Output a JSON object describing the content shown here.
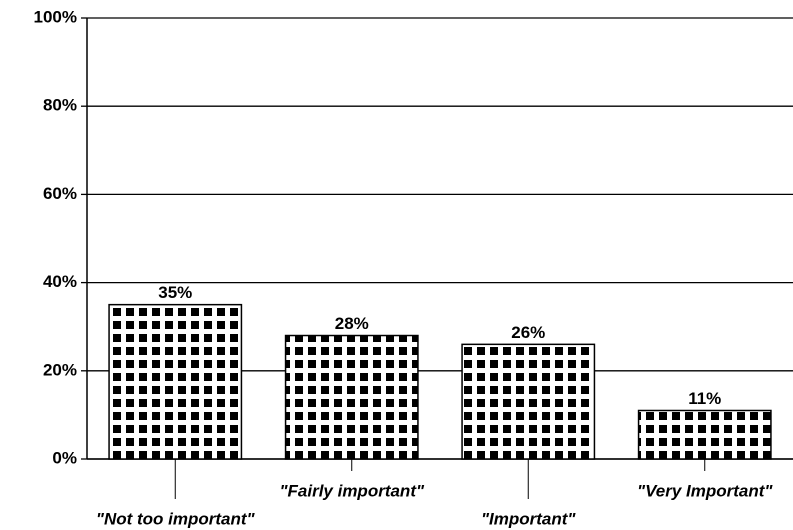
{
  "chart_data": {
    "type": "bar",
    "categories": [
      "\"Not too important\"",
      "\"Fairly important\"",
      "\"Important\"",
      "\"Very Important\""
    ],
    "values": [
      35,
      28,
      26,
      11
    ],
    "value_labels": [
      "35%",
      "28%",
      "26%",
      "11%"
    ],
    "color": "#000000",
    "ylim": [
      0,
      100
    ],
    "yticks": [
      {
        "value": 0,
        "label": "0%"
      },
      {
        "value": 20,
        "label": "20%"
      },
      {
        "value": 40,
        "label": "40%"
      },
      {
        "value": 60,
        "label": "60%"
      },
      {
        "value": 80,
        "label": "80%"
      },
      {
        "value": 100,
        "label": "100%"
      }
    ],
    "grid": true
  }
}
